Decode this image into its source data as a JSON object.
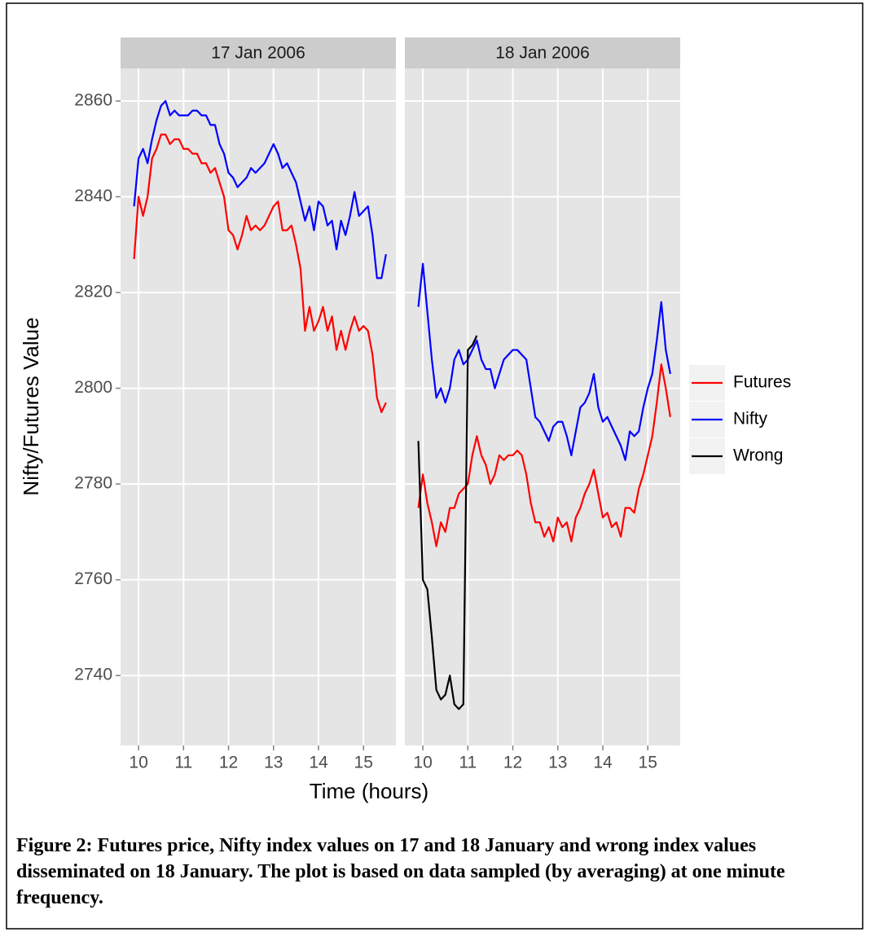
{
  "chart_data": {
    "type": "line",
    "xlabel": "Time (hours)",
    "ylabel": "Nifty/Futures Value",
    "xlim": [
      9.6,
      15.72
    ],
    "xticks": [
      10,
      11,
      12,
      13,
      14,
      15
    ],
    "ylim": [
      2725.4,
      2866.8
    ],
    "yticks": [
      2740,
      2760,
      2780,
      2800,
      2820,
      2840,
      2860
    ],
    "grid": true,
    "legend": "right",
    "x": [
      9.9,
      10.0,
      10.1,
      10.2,
      10.3,
      10.4,
      10.5,
      10.6,
      10.7,
      10.8,
      10.9,
      11.0,
      11.1,
      11.2,
      11.3,
      11.4,
      11.5,
      11.6,
      11.7,
      11.8,
      11.9,
      12.0,
      12.1,
      12.2,
      12.3,
      12.4,
      12.5,
      12.6,
      12.7,
      12.8,
      12.9,
      13.0,
      13.1,
      13.2,
      13.3,
      13.4,
      13.5,
      13.6,
      13.7,
      13.8,
      13.9,
      14.0,
      14.1,
      14.2,
      14.3,
      14.4,
      14.5,
      14.6,
      14.7,
      14.8,
      14.9,
      15.0,
      15.1,
      15.2,
      15.3,
      15.4,
      15.5
    ],
    "series": [
      {
        "name": "Futures",
        "color": "#ff0000"
      },
      {
        "name": "Nifty",
        "color": "#0000ff"
      },
      {
        "name": "Wrong",
        "color": "#000000"
      }
    ],
    "panels": [
      {
        "title": "17 Jan 2006",
        "values": [
          [
            2827,
            2840,
            2836,
            2840,
            2848,
            2850,
            2853,
            2853,
            2851,
            2852,
            2852,
            2850,
            2850,
            2849,
            2849,
            2847,
            2847,
            2845,
            2846,
            2843,
            2840,
            2833,
            2832,
            2829,
            2832,
            2836,
            2833,
            2834,
            2833,
            2834,
            2836,
            2838,
            2839,
            2833,
            2833,
            2834,
            2830,
            2825,
            2812,
            2817,
            2812,
            2814,
            2817,
            2812,
            2815,
            2808,
            2812,
            2808,
            2812,
            2815,
            2812,
            2813,
            2812,
            2807,
            2798,
            2795,
            2797
          ],
          [
            2838,
            2848,
            2850,
            2847,
            2852,
            2856,
            2859,
            2860,
            2857,
            2858,
            2857,
            2857,
            2857,
            2858,
            2858,
            2857,
            2857,
            2855,
            2855,
            2851,
            2849,
            2845,
            2844,
            2842,
            2843,
            2844,
            2846,
            2845,
            2846,
            2847,
            2849,
            2851,
            2849,
            2846,
            2847,
            2845,
            2843,
            2839,
            2835,
            2838,
            2833,
            2839,
            2838,
            2834,
            2835,
            2829,
            2835,
            2832,
            2836,
            2841,
            2836,
            2837,
            2838,
            2832,
            2823,
            2823,
            2828
          ]
        ]
      },
      {
        "title": "18 Jan 2006",
        "values": [
          [
            2775,
            2782,
            2776,
            2772,
            2767,
            2772,
            2770,
            2775,
            2775,
            2778,
            2779,
            2780,
            2786,
            2790,
            2786,
            2784,
            2780,
            2782,
            2786,
            2785,
            2786,
            2786,
            2787,
            2786,
            2782,
            2776,
            2772,
            2772,
            2769,
            2771,
            2768,
            2773,
            2771,
            2772,
            2768,
            2773,
            2775,
            2778,
            2780,
            2783,
            2778,
            2773,
            2774,
            2771,
            2772,
            2769,
            2775,
            2775,
            2774,
            2779,
            2782,
            2786,
            2790,
            2797,
            2805,
            2800,
            2794
          ],
          [
            2817,
            2826,
            2816,
            2806,
            2798,
            2800,
            2797,
            2800,
            2806,
            2808,
            2805,
            2806,
            2808,
            2810,
            2806,
            2804,
            2804,
            2800,
            2803,
            2806,
            2807,
            2808,
            2808,
            2807,
            2806,
            2800,
            2794,
            2793,
            2791,
            2789,
            2792,
            2793,
            2793,
            2790,
            2786,
            2791,
            2796,
            2797,
            2799,
            2803,
            2796,
            2793,
            2794,
            2792,
            2790,
            2788,
            2785,
            2791,
            2790,
            2791,
            2796,
            2800,
            2803,
            2810,
            2818,
            2808,
            2803
          ],
          [
            2789,
            2760,
            2758,
            2748,
            2737,
            2735,
            2736,
            2740,
            2734,
            2733,
            2734,
            2808,
            2809,
            2811,
            null,
            null,
            null,
            null,
            null,
            null,
            null,
            null,
            null,
            null,
            null,
            null,
            null,
            null,
            null,
            null,
            null,
            null,
            null,
            null,
            null,
            null,
            null,
            null,
            null,
            null,
            null,
            null,
            null,
            null,
            null,
            null,
            null,
            null,
            null,
            null,
            null,
            null,
            null,
            null,
            null,
            null,
            null
          ]
        ]
      }
    ]
  },
  "caption": "Figure 2: Futures price, Nifty index values on 17 and 18 January and wrong index values disseminated on 18 January. The plot is based on data sampled (by averaging) at one minute frequency."
}
